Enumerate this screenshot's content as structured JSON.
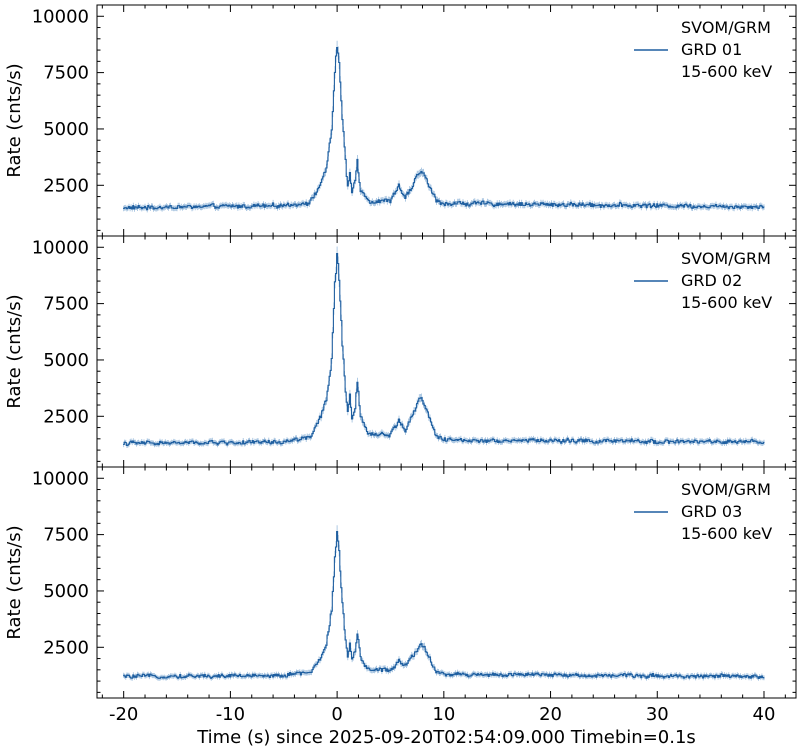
{
  "chart_data": {
    "type": "line",
    "xlabel": "Time (s) since 2025-09-20T02:54:09.000 Timebin=0.1s",
    "xlim": [
      -22.5,
      43
    ],
    "xticks": [
      -20,
      -10,
      0,
      10,
      20,
      30,
      40
    ],
    "x_range": [
      -20,
      40
    ],
    "bin_width": 0.1,
    "line_color": "#1f5fa0",
    "error_color": "#9bbcdc",
    "panels": [
      {
        "ylabel": "Rate (cnts/s)",
        "ylim": [
          250,
          10500
        ],
        "yticks": [
          2500,
          5000,
          7500,
          10000
        ],
        "legend": [
          "SVOM/GRM",
          "GRD 01",
          "15-600 keV"
        ],
        "legend_position": "top-right",
        "background_rate": 1600,
        "series": {
          "name": "GRD 01",
          "shape": [
            {
              "t": -20,
              "rate": 1500
            },
            {
              "t": -5,
              "rate": 1600
            },
            {
              "t": -2.5,
              "rate": 1750
            },
            {
              "t": -1.5,
              "rate": 2600
            },
            {
              "t": -1.0,
              "rate": 3200
            },
            {
              "t": -0.5,
              "rate": 5000
            },
            {
              "t": -0.2,
              "rate": 7600
            },
            {
              "t": 0.0,
              "rate": 8700
            },
            {
              "t": 0.2,
              "rate": 7800
            },
            {
              "t": 0.5,
              "rate": 5400
            },
            {
              "t": 0.8,
              "rate": 3500
            },
            {
              "t": 1.0,
              "rate": 2400
            },
            {
              "t": 1.2,
              "rate": 3000
            },
            {
              "t": 1.4,
              "rate": 2200
            },
            {
              "t": 1.7,
              "rate": 2700
            },
            {
              "t": 1.9,
              "rate": 3600
            },
            {
              "t": 2.2,
              "rate": 2300
            },
            {
              "t": 3.0,
              "rate": 1800
            },
            {
              "t": 5.0,
              "rate": 1800
            },
            {
              "t": 5.8,
              "rate": 2500
            },
            {
              "t": 6.4,
              "rate": 1900
            },
            {
              "t": 7.2,
              "rate": 2600
            },
            {
              "t": 7.9,
              "rate": 3200
            },
            {
              "t": 8.6,
              "rate": 2500
            },
            {
              "t": 9.3,
              "rate": 1800
            },
            {
              "t": 10,
              "rate": 1700
            },
            {
              "t": 40,
              "rate": 1550
            }
          ]
        }
      },
      {
        "ylabel": "Rate (cnts/s)",
        "ylim": [
          250,
          10500
        ],
        "yticks": [
          2500,
          5000,
          7500,
          10000
        ],
        "legend": [
          "SVOM/GRM",
          "GRD 02",
          "15-600 keV"
        ],
        "legend_position": "top-right",
        "background_rate": 1350,
        "series": {
          "name": "GRD 02",
          "shape": [
            {
              "t": -20,
              "rate": 1300
            },
            {
              "t": -5,
              "rate": 1350
            },
            {
              "t": -2.5,
              "rate": 1600
            },
            {
              "t": -1.5,
              "rate": 2500
            },
            {
              "t": -1.0,
              "rate": 3200
            },
            {
              "t": -0.5,
              "rate": 5000
            },
            {
              "t": -0.2,
              "rate": 8300
            },
            {
              "t": 0.0,
              "rate": 9700
            },
            {
              "t": 0.2,
              "rate": 8600
            },
            {
              "t": 0.5,
              "rate": 5600
            },
            {
              "t": 0.8,
              "rate": 3600
            },
            {
              "t": 1.0,
              "rate": 2700
            },
            {
              "t": 1.2,
              "rate": 3400
            },
            {
              "t": 1.4,
              "rate": 2400
            },
            {
              "t": 1.7,
              "rate": 2900
            },
            {
              "t": 1.9,
              "rate": 4000
            },
            {
              "t": 2.2,
              "rate": 2500
            },
            {
              "t": 3.0,
              "rate": 1700
            },
            {
              "t": 5.0,
              "rate": 1700
            },
            {
              "t": 5.8,
              "rate": 2300
            },
            {
              "t": 6.4,
              "rate": 1900
            },
            {
              "t": 7.2,
              "rate": 2700
            },
            {
              "t": 7.9,
              "rate": 3400
            },
            {
              "t": 8.6,
              "rate": 2500
            },
            {
              "t": 9.3,
              "rate": 1600
            },
            {
              "t": 10,
              "rate": 1450
            },
            {
              "t": 40,
              "rate": 1350
            }
          ]
        }
      },
      {
        "ylabel": "Rate (cnts/s)",
        "ylim": [
          250,
          10500
        ],
        "yticks": [
          2500,
          5000,
          7500,
          10000
        ],
        "legend": [
          "SVOM/GRM",
          "GRD 03",
          "15-600 keV"
        ],
        "legend_position": "top-right",
        "background_rate": 1250,
        "series": {
          "name": "GRD 03",
          "shape": [
            {
              "t": -20,
              "rate": 1200
            },
            {
              "t": -5,
              "rate": 1250
            },
            {
              "t": -2.5,
              "rate": 1400
            },
            {
              "t": -1.5,
              "rate": 2000
            },
            {
              "t": -1.0,
              "rate": 2600
            },
            {
              "t": -0.5,
              "rate": 4200
            },
            {
              "t": -0.2,
              "rate": 6500
            },
            {
              "t": 0.0,
              "rate": 7600
            },
            {
              "t": 0.2,
              "rate": 6800
            },
            {
              "t": 0.5,
              "rate": 4500
            },
            {
              "t": 0.8,
              "rate": 2800
            },
            {
              "t": 1.0,
              "rate": 2100
            },
            {
              "t": 1.2,
              "rate": 2600
            },
            {
              "t": 1.4,
              "rate": 1900
            },
            {
              "t": 1.7,
              "rate": 2300
            },
            {
              "t": 1.9,
              "rate": 3100
            },
            {
              "t": 2.2,
              "rate": 2000
            },
            {
              "t": 3.0,
              "rate": 1500
            },
            {
              "t": 5.0,
              "rate": 1500
            },
            {
              "t": 5.8,
              "rate": 1900
            },
            {
              "t": 6.4,
              "rate": 1700
            },
            {
              "t": 7.2,
              "rate": 2200
            },
            {
              "t": 7.9,
              "rate": 2700
            },
            {
              "t": 8.6,
              "rate": 2100
            },
            {
              "t": 9.3,
              "rate": 1400
            },
            {
              "t": 10,
              "rate": 1300
            },
            {
              "t": 40,
              "rate": 1200
            }
          ]
        }
      }
    ]
  }
}
